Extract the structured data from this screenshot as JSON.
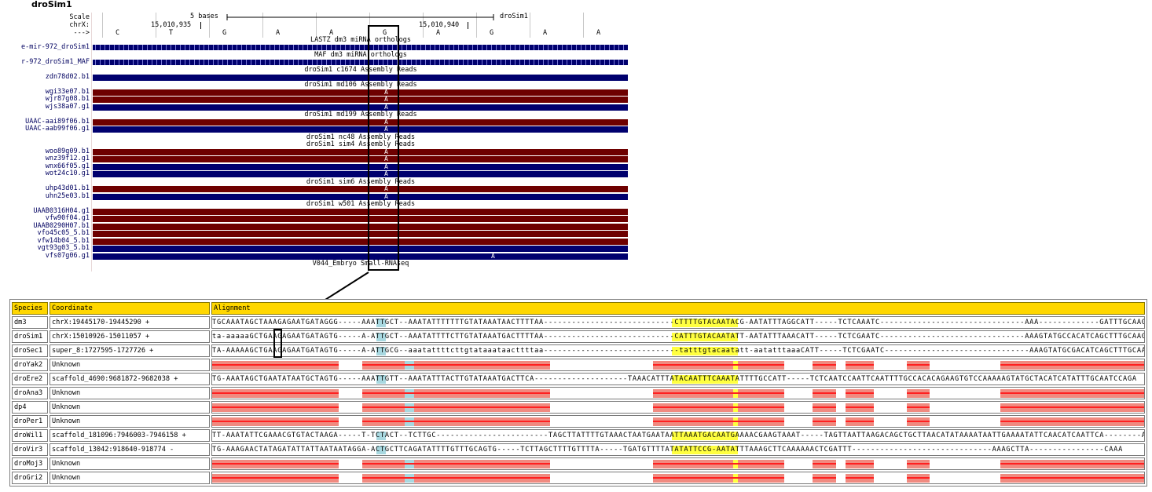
{
  "browser": {
    "title": "droSim1",
    "scale_label": "Scale",
    "scale_value": "5 bases",
    "scale_assembly": "droSim1",
    "chr_label": "chrX:",
    "coord_left": "15,010,935",
    "coord_right": "15,010,940",
    "strand_label": "--->",
    "bases": [
      "C",
      "T",
      "G",
      "A",
      "A",
      "G",
      "A",
      "G",
      "A",
      "A"
    ],
    "tracks": [
      {
        "type": "caption",
        "text": "LASTZ dm3 miRNA orthologs"
      },
      {
        "type": "chevron",
        "label": "e-mir-972_droSim1"
      },
      {
        "type": "caption",
        "text": "MAF dm3 miRNA orthologs"
      },
      {
        "type": "chevron",
        "label": "r-972_droSim1_MAF"
      },
      {
        "type": "caption",
        "text": "droSim1 c1674 Assembly Reads"
      },
      {
        "type": "blue",
        "label": "zdn78d02.b1",
        "a": ""
      },
      {
        "type": "caption",
        "text": "droSim1 md106 Assembly Reads"
      },
      {
        "type": "red",
        "label": "wgi33e07.b1",
        "a": "A"
      },
      {
        "type": "red",
        "label": "wjr87g08.b1",
        "a": "A"
      },
      {
        "type": "blue",
        "label": "wjs38a07.g1",
        "a": "A"
      },
      {
        "type": "caption",
        "text": "droSim1 md199 Assembly Reads"
      },
      {
        "type": "red",
        "label": "UAAC-aai89f06.b1",
        "a": "A"
      },
      {
        "type": "blue",
        "label": "UAAC-aab99f06.g1",
        "a": "A"
      },
      {
        "type": "caption",
        "text": "droSim1 nc48 Assembly Reads"
      },
      {
        "type": "caption",
        "text": "droSim1 sim4 Assembly Reads"
      },
      {
        "type": "red",
        "label": "woo89g09.b1",
        "a": "A"
      },
      {
        "type": "red",
        "label": "wnz39f12.g1",
        "a": "A"
      },
      {
        "type": "blue",
        "label": "wnx66f05.g1",
        "a": "A"
      },
      {
        "type": "blue",
        "label": "wot24c10.g1",
        "a": "A"
      },
      {
        "type": "caption",
        "text": "droSim1 sim6 Assembly Reads"
      },
      {
        "type": "red",
        "label": "uhp43d01.b1",
        "a": "A"
      },
      {
        "type": "blue",
        "label": "uhn25e03.b1",
        "a": "A"
      },
      {
        "type": "caption",
        "text": "droSim1 w501 Assembly Reads"
      },
      {
        "type": "red",
        "label": "UAAB0316H04.g1",
        "a": ""
      },
      {
        "type": "red",
        "label": "vfw90f04.g1",
        "a": ""
      },
      {
        "type": "red",
        "label": "UAAB0290H07.b1",
        "a": ""
      },
      {
        "type": "red",
        "label": "vfo45c05_5.b1",
        "a": ""
      },
      {
        "type": "red",
        "label": "vfw14b04_5.b1",
        "a": ""
      },
      {
        "type": "blue",
        "label": "vgt93g03_5.b1",
        "a": ""
      },
      {
        "type": "blue",
        "label": "vfs07g06.g1",
        "a": "A"
      },
      {
        "type": "caption",
        "text": "V044_Embryo Small-RNAseq"
      }
    ]
  },
  "alignment": {
    "headers": {
      "species": "Species",
      "coordinate": "Coordinate",
      "alignment": "Alignment"
    },
    "rows": [
      {
        "species": "dm3",
        "coordinate": "chrX:19445170-19445290 +",
        "seq": "TGCAAATAGCTAAAGAGAATGATAGGG-----AAATTGCT--AAATATTTTTTTGTATAAATAACTTTTAA----------------------------CTTTTGTACAATACG-AATATTTAGGCATT-----TCTCAAATC-------------------------------AAA-------------GATTTGCAAGCCAAA"
      },
      {
        "species": "droSim1",
        "coordinate": "chrX:15010926-15011057 +",
        "seq": "ta-aaaaaGCTGAAGAGAATGATAGTG-----A-ATTGCT--AAATATTTTCTTGTATAAATGACTTTTAA----------------------------CATTTGTACAATATT-AATATTTAAACATT-----TCTCGAATC-------------------------------AAAGTATGCCACATCAGCTTTGCAAGCCAAA"
      },
      {
        "species": "droSec1",
        "coordinate": "super_8:1727595-1727726 +",
        "seq": "TA-AAAAAGCTGAAGAGAATGATAGTG-----A-ATTGCG--aaatattttcttgtataaataacttttaa-----------------------------tatttgtacaatatt-aatatttaaaCATT-----TCTCGAATC-------------------------------AAAGTATGCGACATCAGCTTTGCAAGCCAAA"
      },
      {
        "species": "droYak2",
        "coordinate": "Unknown",
        "seq": ""
      },
      {
        "species": "droEre2",
        "coordinate": "scaffold_4690:9681872-9682038 +",
        "seq": "TG-AAATAGCTGAATATAATGCTAGTG-----AAATTGTT--AAATATTTACTTGTATAAATGACTTCA--------------------TAAACATTTATACAATTTCAAATATTTTGCCATT-----TCTCAATCCAATTCAATTTTGCCACACAGAAGTGTCCAAAAAGTATGCTACATCATATTTGCAATCCAGA"
      },
      {
        "species": "droAna3",
        "coordinate": "Unknown",
        "seq": ""
      },
      {
        "species": "dp4",
        "coordinate": "Unknown",
        "seq": ""
      },
      {
        "species": "droPer1",
        "coordinate": "Unknown",
        "seq": ""
      },
      {
        "species": "droWil1",
        "coordinate": "scaffold_181096:7946003-7946158 +",
        "seq": "TT-AAATATTCGAAACGTGTACTAAGA-----T-TCTACT--TCTTGC------------------------TAGCTTATTTTGTAAACTAATGAATAATTAAATGACAATGAAAACGAAGTAAAT-----TAGTTAATTAAGACAGCTGCTTAACATATAAAATAATTGAAAATATTCAACATCAATTCA--------ATA"
      },
      {
        "species": "droVir3",
        "coordinate": "scaffold_13042:918640-918774 -",
        "seq": "TG-AAAGAACTATAGATATTATTAATAATAGGA-ACTGCTTCAGATATTTTGTTTGCAGTG-----TCTTAGCTTTTGTTTTA-----TGATGTTTTATATATTCCG-AATATTTAAAGCTTCAAAAAACTCGATTT------------------------------AAAGCTTA----------------CAAA"
      },
      {
        "species": "droMoj3",
        "coordinate": "Unknown",
        "seq": ""
      },
      {
        "species": "droGri2",
        "coordinate": "Unknown",
        "seq": ""
      }
    ]
  },
  "colors": {
    "track_blue": "#00006e",
    "track_red": "#6e0000",
    "header_gold": "#ffd700",
    "gap_red": "#f08a80",
    "mirna_yellow": "#ffff40",
    "loop_blue": "#a8d8e0"
  }
}
